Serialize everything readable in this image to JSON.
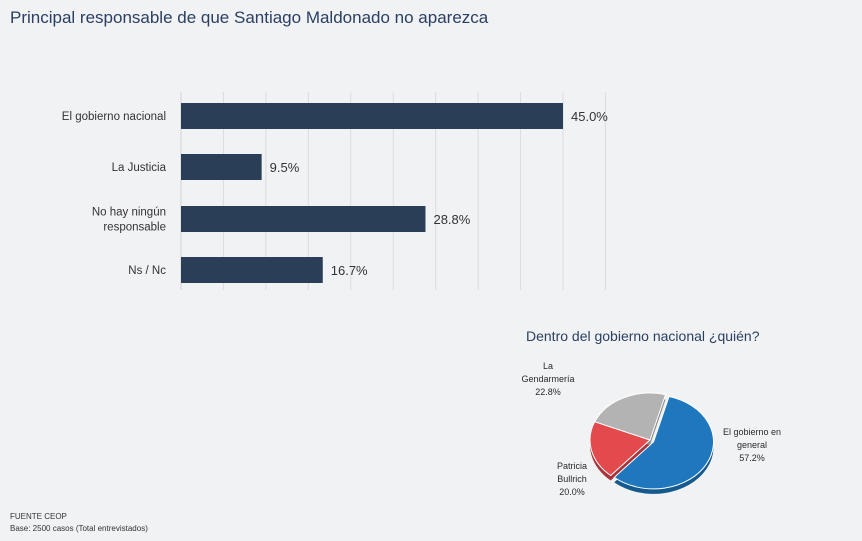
{
  "title": "Principal responsable de que Santiago Maldonado no aparezca",
  "colors": {
    "bar": "#2b3e57",
    "pie_blue": "#1f78bd",
    "pie_red": "#e24a4e",
    "pie_gray": "#b3b3b3",
    "title": "#2a3f62"
  },
  "chart_data": [
    {
      "type": "bar",
      "orientation": "horizontal",
      "title": "Principal responsable de que Santiago Maldonado no aparezca",
      "categories": [
        "El gobierno nacional",
        "La Justicia",
        "No hay ningún responsable",
        "Ns / Nc"
      ],
      "category_lines": [
        [
          "El gobierno nacional"
        ],
        [
          "La Justicia"
        ],
        [
          "No hay ningún",
          "responsable"
        ],
        [
          "Ns / Nc"
        ]
      ],
      "values": [
        45.0,
        9.5,
        28.8,
        16.7
      ],
      "labels": [
        "45.0%",
        "9.5%",
        "28.8%",
        "16.7%"
      ],
      "xlim": [
        0,
        50
      ],
      "grid": true
    },
    {
      "type": "pie",
      "title": "Dentro del gobierno nacional ¿quién?",
      "categories": [
        "El gobierno en general",
        "Patricia Bullrich",
        "La Gendarmería"
      ],
      "values": [
        57.2,
        20.0,
        22.8
      ],
      "labels": [
        {
          "lines": [
            "El gobierno en",
            "general"
          ],
          "value": "57.2%"
        },
        {
          "lines": [
            "Patricia",
            "Bullrich"
          ],
          "value": "20.0%"
        },
        {
          "lines": [
            "La",
            "Gendarmería"
          ],
          "value": "22.8%"
        }
      ]
    }
  ],
  "source": {
    "line1": "FUENTE CEOP",
    "line2": "Base: 2500 casos (Total entrevistados)"
  }
}
